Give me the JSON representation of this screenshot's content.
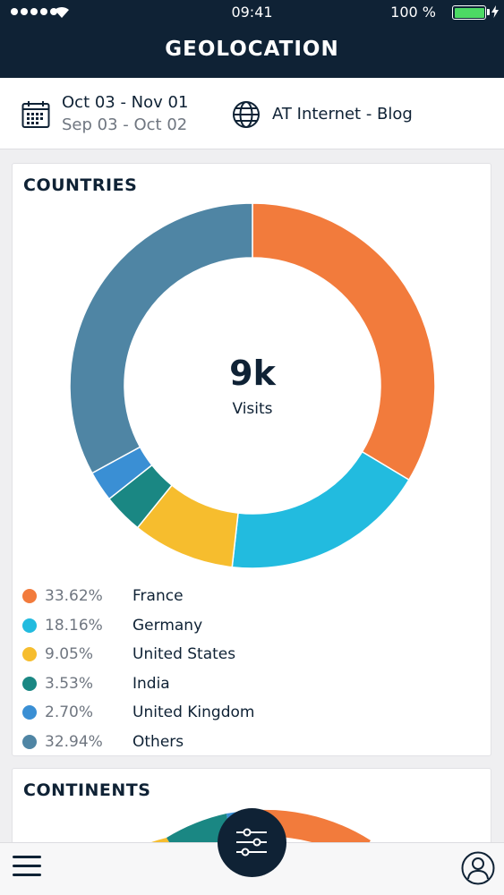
{
  "status_bar": {
    "time": "09:41",
    "battery": "100 %",
    "battery_color": "#4cd964"
  },
  "header": {
    "title": "GEOLOCATION",
    "background": "#0f2235"
  },
  "filters": {
    "period_main": "Oct 03 - Nov 01",
    "period_compare": "Sep 03 - Oct 02",
    "site": "AT Internet - Blog",
    "calendar_icon": "calendar-icon",
    "site_icon": "globe-icon"
  },
  "countries": {
    "title": "COUNTRIES",
    "center_value": "9k",
    "center_label": "Visits",
    "legend": [
      {
        "pct": "33.62%",
        "name": "France"
      },
      {
        "pct": "18.16%",
        "name": "Germany"
      },
      {
        "pct": "9.05%",
        "name": "United States"
      },
      {
        "pct": "3.53%",
        "name": "India"
      },
      {
        "pct": "2.70%",
        "name": "United Kingdom"
      },
      {
        "pct": "32.94%",
        "name": "Others"
      }
    ]
  },
  "continents": {
    "title": "CONTINENTS"
  },
  "bottom_bar": {
    "menu_icon": "hamburger-menu-icon",
    "filter_icon": "sliders-icon",
    "profile_icon": "user-profile-icon"
  },
  "chart_data": [
    {
      "type": "pie",
      "title": "COUNTRIES",
      "categories": [
        "France",
        "Germany",
        "United States",
        "India",
        "United Kingdom",
        "Others"
      ],
      "values": [
        33.62,
        18.16,
        9.05,
        3.53,
        2.7,
        32.94
      ],
      "colors": [
        "#f27b3c",
        "#22bbdf",
        "#f6bd2e",
        "#1a8783",
        "#3a8fd4",
        "#4f85a4"
      ],
      "center_value": "9k",
      "center_label": "Visits",
      "donut": true,
      "legend_position": "bottom"
    },
    {
      "type": "pie",
      "title": "CONTINENTS",
      "partially_visible": true,
      "colors": [
        "#1a8783",
        "#3a8fd4",
        "#f27b3c",
        "#f6bd2e"
      ]
    }
  ]
}
